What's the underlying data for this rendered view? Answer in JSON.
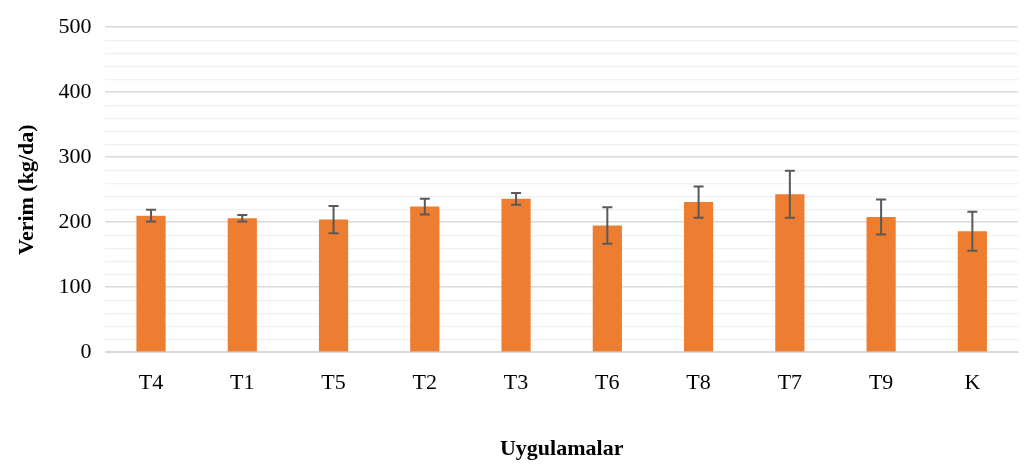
{
  "chart_data": {
    "type": "bar",
    "xlabel": "Uygulamalar",
    "ylabel": "Verim (kg/da)",
    "categories": [
      "T4",
      "T1",
      "T5",
      "T2",
      "T3",
      "T6",
      "T8",
      "T7",
      "T9",
      "K"
    ],
    "values": [
      210,
      206,
      204,
      224,
      236,
      195,
      231,
      243,
      208,
      186
    ],
    "errors": [
      9,
      5,
      21,
      12,
      9,
      28,
      24,
      36,
      27,
      30
    ],
    "color": "#ed7d31",
    "ylim": [
      0,
      500
    ],
    "yticks": [
      0,
      {
        "value": 20,
        "label": null
      },
      {
        "value": 40,
        "label": null
      },
      {
        "value": 60,
        "label": null
      },
      {
        "value": 80,
        "label": null
      },
      100,
      {
        "value": 120,
        "label": null
      },
      {
        "value": 140,
        "label": null
      },
      {
        "value": 160,
        "label": null
      },
      {
        "value": 180,
        "label": null
      },
      200,
      {
        "value": 220,
        "label": null
      },
      {
        "value": 240,
        "label": null
      },
      {
        "value": 260,
        "label": null
      },
      {
        "value": 280,
        "label": null
      },
      300,
      {
        "value": 320,
        "label": null
      },
      {
        "value": 340,
        "label": null
      },
      {
        "value": 360,
        "label": null
      },
      {
        "value": 380,
        "label": null
      },
      400,
      {
        "value": 420,
        "label": null
      },
      {
        "value": 440,
        "label": null
      },
      {
        "value": 460,
        "label": null
      },
      {
        "value": 480,
        "label": null
      },
      500
    ],
    "grid": "y"
  }
}
